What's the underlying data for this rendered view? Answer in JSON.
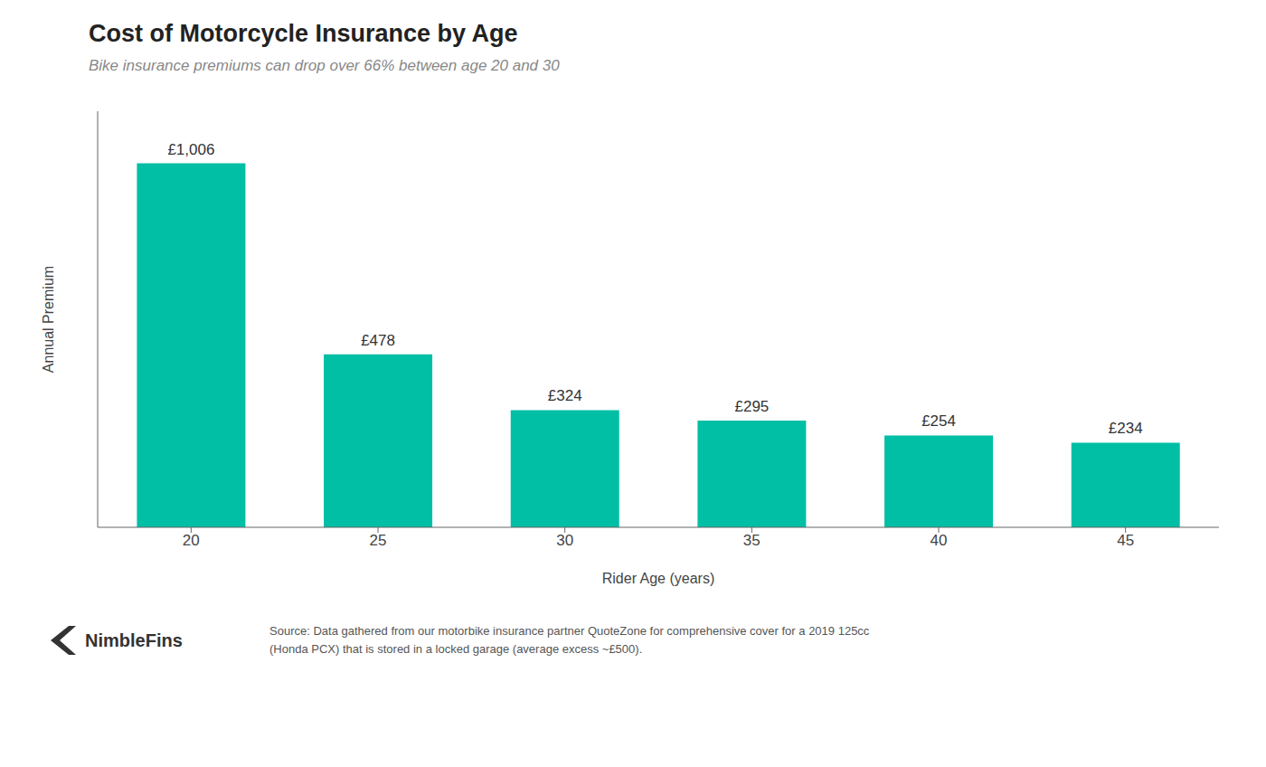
{
  "chart_data": {
    "type": "bar",
    "title": "Cost of Motorcycle Insurance by Age",
    "subtitle": "Bike insurance premiums can drop over 66% between age 20 and 30",
    "categories": [
      "20",
      "25",
      "30",
      "35",
      "40",
      "45"
    ],
    "values": [
      1006,
      478,
      324,
      295,
      254,
      234
    ],
    "value_labels": [
      "£1,006",
      "£478",
      "£324",
      "£295",
      "£254",
      "£234"
    ],
    "data_labels": true,
    "color": "#00BFA5",
    "xlabel": "Rider Age (years)",
    "ylabel": "Annual Premium",
    "ylim": [
      0,
      1150
    ],
    "tick_labels": "x",
    "grid": false,
    "annotations": [
      "Source: Data gathered from our motorbike insurance partner QuoteZone for comprehensive cover for a 2019 125cc",
      "(Honda PCX) that is stored in a locked garage (average excess ~£500).",
      "NimbleFins"
    ]
  }
}
